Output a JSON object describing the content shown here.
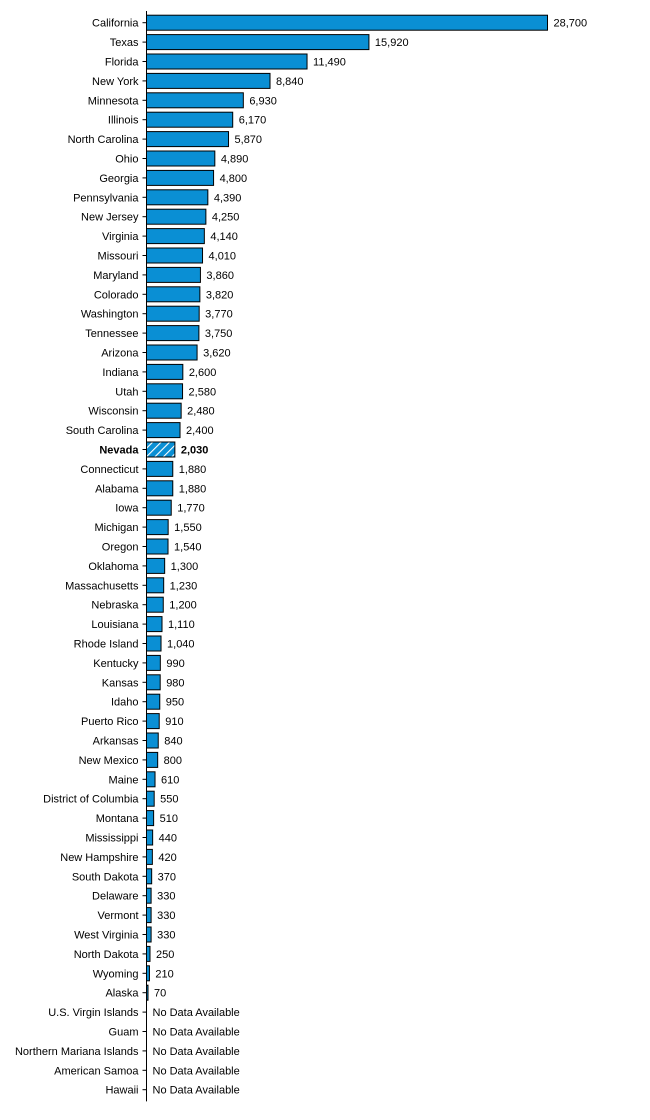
{
  "chart_data": {
    "type": "bar",
    "orientation": "horizontal",
    "title": "",
    "xlabel": "",
    "ylabel": "",
    "highlight": "Nevada",
    "bar_color": "#0a8fd4",
    "bar_border": "#000000",
    "highlight_pattern": "hatched",
    "no_data_label": "No Data Available",
    "xlim": [
      0,
      28700
    ],
    "categories": [
      "California",
      "Texas",
      "Florida",
      "New York",
      "Minnesota",
      "Illinois",
      "North Carolina",
      "Ohio",
      "Georgia",
      "Pennsylvania",
      "New Jersey",
      "Virginia",
      "Missouri",
      "Maryland",
      "Colorado",
      "Washington",
      "Tennessee",
      "Arizona",
      "Indiana",
      "Utah",
      "Wisconsin",
      "South Carolina",
      "Nevada",
      "Connecticut",
      "Alabama",
      "Iowa",
      "Michigan",
      "Oregon",
      "Oklahoma",
      "Massachusetts",
      "Nebraska",
      "Louisiana",
      "Rhode Island",
      "Kentucky",
      "Kansas",
      "Idaho",
      "Puerto Rico",
      "Arkansas",
      "New Mexico",
      "Maine",
      "District of Columbia",
      "Montana",
      "Mississippi",
      "New Hampshire",
      "South Dakota",
      "Delaware",
      "Vermont",
      "West Virginia",
      "North Dakota",
      "Wyoming",
      "Alaska",
      "U.S. Virgin Islands",
      "Guam",
      "Northern Mariana Islands",
      "American Samoa",
      "Hawaii"
    ],
    "values": [
      28700,
      15920,
      11490,
      8840,
      6930,
      6170,
      5870,
      4890,
      4800,
      4390,
      4250,
      4140,
      4010,
      3860,
      3820,
      3770,
      3750,
      3620,
      2600,
      2580,
      2480,
      2400,
      2030,
      1880,
      1880,
      1770,
      1550,
      1540,
      1300,
      1230,
      1200,
      1110,
      1040,
      990,
      980,
      950,
      910,
      840,
      800,
      610,
      550,
      510,
      440,
      420,
      370,
      330,
      330,
      330,
      250,
      210,
      70,
      null,
      null,
      null,
      null,
      null
    ],
    "value_labels": [
      "28,700",
      "15,920",
      "11,490",
      "8,840",
      "6,930",
      "6,170",
      "5,870",
      "4,890",
      "4,800",
      "4,390",
      "4,250",
      "4,140",
      "4,010",
      "3,860",
      "3,820",
      "3,770",
      "3,750",
      "3,620",
      "2,600",
      "2,580",
      "2,480",
      "2,400",
      "2,030",
      "1,880",
      "1,880",
      "1,770",
      "1,550",
      "1,540",
      "1,300",
      "1,230",
      "1,200",
      "1,110",
      "1,040",
      "990",
      "980",
      "950",
      "910",
      "840",
      "800",
      "610",
      "550",
      "510",
      "440",
      "420",
      "370",
      "330",
      "330",
      "330",
      "250",
      "210",
      "70",
      "No Data Available",
      "No Data Available",
      "No Data Available",
      "No Data Available",
      "No Data Available"
    ]
  }
}
